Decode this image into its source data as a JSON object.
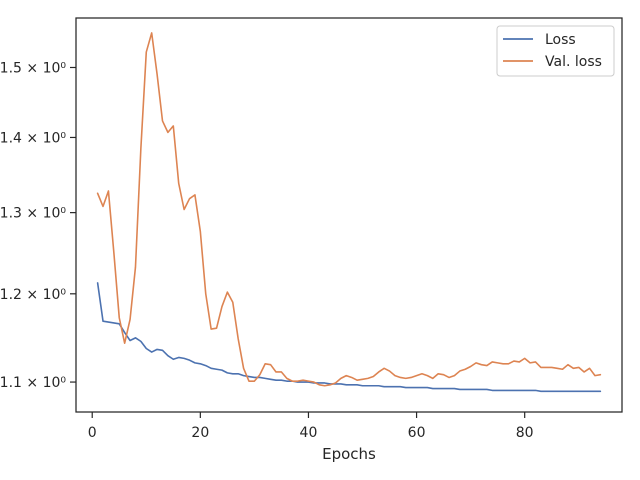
{
  "chart_data": {
    "type": "line",
    "title": "",
    "xlabel": "Epochs",
    "ylabel": "",
    "xlim": [
      -3,
      98
    ],
    "ylim": [
      1.068,
      1.575
    ],
    "yscale": "log",
    "grid": false,
    "legend": "top-right",
    "x_ticks": [
      0,
      20,
      40,
      60,
      80
    ],
    "x_tick_labels": [
      "0",
      "20",
      "40",
      "60",
      "80"
    ],
    "y_ticks": [
      1.1,
      1.2,
      1.3,
      1.4,
      1.5
    ],
    "y_tick_labels": [
      "1.1 × 10⁰",
      "1.2 × 10⁰",
      "1.3 × 10⁰",
      "1.4 × 10⁰",
      "1.5 × 10⁰"
    ],
    "series": [
      {
        "name": "Loss",
        "color": "#4c72b0",
        "x": [
          1,
          2,
          3,
          4,
          5,
          6,
          7,
          8,
          9,
          10,
          11,
          12,
          13,
          14,
          15,
          16,
          17,
          18,
          19,
          20,
          21,
          22,
          23,
          24,
          25,
          26,
          27,
          28,
          29,
          30,
          31,
          32,
          33,
          34,
          35,
          36,
          37,
          38,
          39,
          40,
          41,
          42,
          43,
          44,
          45,
          46,
          47,
          48,
          49,
          50,
          51,
          52,
          53,
          54,
          55,
          56,
          57,
          58,
          59,
          60,
          61,
          62,
          63,
          64,
          65,
          66,
          67,
          68,
          69,
          70,
          71,
          72,
          73,
          74,
          75,
          76,
          77,
          78,
          79,
          80,
          81,
          82,
          83,
          84,
          85,
          86,
          87,
          88,
          89,
          90,
          91,
          92,
          93,
          94
        ],
        "y": [
          1.213,
          1.168,
          1.167,
          1.166,
          1.165,
          1.155,
          1.146,
          1.149,
          1.145,
          1.137,
          1.133,
          1.136,
          1.135,
          1.129,
          1.125,
          1.127,
          1.126,
          1.124,
          1.121,
          1.12,
          1.118,
          1.115,
          1.114,
          1.113,
          1.11,
          1.109,
          1.109,
          1.107,
          1.106,
          1.105,
          1.105,
          1.104,
          1.103,
          1.102,
          1.102,
          1.101,
          1.101,
          1.1,
          1.1,
          1.1,
          1.099,
          1.099,
          1.099,
          1.098,
          1.098,
          1.098,
          1.097,
          1.097,
          1.097,
          1.096,
          1.096,
          1.096,
          1.096,
          1.095,
          1.095,
          1.095,
          1.095,
          1.094,
          1.094,
          1.094,
          1.094,
          1.094,
          1.093,
          1.093,
          1.093,
          1.093,
          1.093,
          1.092,
          1.092,
          1.092,
          1.092,
          1.092,
          1.092,
          1.091,
          1.091,
          1.091,
          1.091,
          1.091,
          1.091,
          1.091,
          1.091,
          1.091,
          1.09,
          1.09,
          1.09,
          1.09,
          1.09,
          1.09,
          1.09,
          1.09,
          1.09,
          1.09,
          1.09,
          1.09
        ]
      },
      {
        "name": "Val. loss",
        "color": "#dd8452",
        "x": [
          1,
          2,
          3,
          4,
          5,
          6,
          7,
          8,
          9,
          10,
          11,
          12,
          13,
          14,
          15,
          16,
          17,
          18,
          19,
          20,
          21,
          22,
          23,
          24,
          25,
          26,
          27,
          28,
          29,
          30,
          31,
          32,
          33,
          34,
          35,
          36,
          37,
          38,
          39,
          40,
          41,
          42,
          43,
          44,
          45,
          46,
          47,
          48,
          49,
          50,
          51,
          52,
          53,
          54,
          55,
          56,
          57,
          58,
          59,
          60,
          61,
          62,
          63,
          64,
          65,
          66,
          67,
          68,
          69,
          70,
          71,
          72,
          73,
          74,
          75,
          76,
          77,
          78,
          79,
          80,
          81,
          82,
          83,
          84,
          85,
          86,
          87,
          88,
          89,
          90,
          91,
          92,
          93,
          94
        ],
        "y": [
          1.325,
          1.308,
          1.328,
          1.25,
          1.172,
          1.143,
          1.17,
          1.232,
          1.385,
          1.523,
          1.552,
          1.49,
          1.423,
          1.407,
          1.416,
          1.338,
          1.304,
          1.318,
          1.323,
          1.276,
          1.2,
          1.159,
          1.16,
          1.185,
          1.202,
          1.19,
          1.148,
          1.115,
          1.101,
          1.101,
          1.108,
          1.12,
          1.119,
          1.111,
          1.111,
          1.104,
          1.101,
          1.101,
          1.102,
          1.101,
          1.1,
          1.097,
          1.096,
          1.097,
          1.099,
          1.104,
          1.107,
          1.105,
          1.102,
          1.103,
          1.104,
          1.106,
          1.111,
          1.115,
          1.112,
          1.107,
          1.105,
          1.104,
          1.105,
          1.107,
          1.109,
          1.107,
          1.104,
          1.109,
          1.108,
          1.105,
          1.107,
          1.112,
          1.114,
          1.117,
          1.121,
          1.119,
          1.118,
          1.122,
          1.121,
          1.12,
          1.12,
          1.123,
          1.122,
          1.126,
          1.121,
          1.122,
          1.116,
          1.116,
          1.116,
          1.115,
          1.114,
          1.119,
          1.115,
          1.116,
          1.111,
          1.115,
          1.107,
          1.108
        ]
      }
    ]
  }
}
